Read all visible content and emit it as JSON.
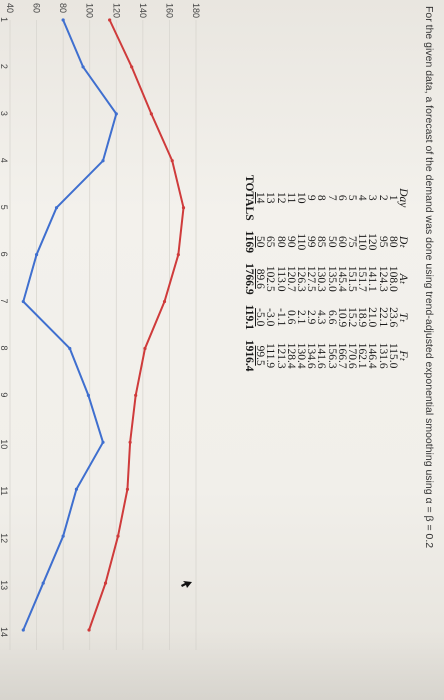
{
  "caption": "For the given data, a forecast of the demand was done using trend-adjusted exponential smoothing using α = β = 0.2",
  "table": {
    "headers": [
      "Day",
      "Dₜ",
      "Aₜ",
      "Tₜ",
      "Fₜ"
    ],
    "rows": [
      [
        "1",
        "80",
        "108.0",
        "23.6",
        "115.0"
      ],
      [
        "2",
        "95",
        "124.3",
        "22.1",
        "131.6"
      ],
      [
        "3",
        "120",
        "141.1",
        "21.0",
        "146.4"
      ],
      [
        "4",
        "110",
        "151.7",
        "18.9",
        "162.1"
      ],
      [
        "5",
        "75",
        "151.5",
        "15.2",
        "170.6"
      ],
      [
        "6",
        "60",
        "145.4",
        "10.9",
        "166.7"
      ],
      [
        "7",
        "50",
        "135.0",
        "6.6",
        "156.3"
      ],
      [
        "8",
        "85",
        "130.3",
        "4.3",
        "141.6"
      ],
      [
        "9",
        "99",
        "127.5",
        "2.9",
        "134.6"
      ],
      [
        "10",
        "110",
        "126.3",
        "2.1",
        "130.4"
      ],
      [
        "11",
        "90",
        "120.7",
        "0.6",
        "128.4"
      ],
      [
        "12",
        "80",
        "113.0",
        "-1.1",
        "121.3"
      ],
      [
        "13",
        "65",
        "102.5",
        "-3.0",
        "111.9"
      ],
      [
        "14",
        "50",
        "89.6",
        "-5.0",
        "99.5"
      ]
    ],
    "totals": [
      "TOTALS",
      "1169",
      "1766.9",
      "119.1",
      "1916.4"
    ]
  },
  "chart_data": {
    "type": "line",
    "x": [
      1,
      2,
      3,
      4,
      5,
      6,
      7,
      8,
      9,
      10,
      11,
      12,
      13,
      14
    ],
    "ylim": [
      40,
      180
    ],
    "yticks": [
      40,
      60,
      80,
      100,
      120,
      140,
      160,
      180
    ],
    "series": [
      {
        "values": [
          80,
          95,
          120,
          110,
          75,
          60,
          50,
          85,
          99,
          110,
          90,
          80,
          65,
          50
        ],
        "color": "#3f6fcf"
      },
      {
        "values": [
          115.0,
          131.6,
          146.4,
          162.1,
          170.6,
          166.7,
          156.3,
          141.6,
          134.6,
          130.4,
          128.4,
          121.3,
          111.9,
          99.5
        ],
        "color": "#cf3b3b"
      }
    ],
    "grid": true
  }
}
